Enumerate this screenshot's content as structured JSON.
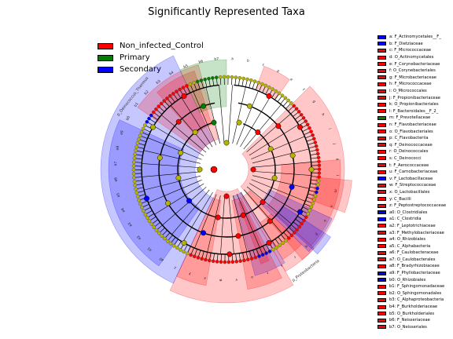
{
  "chart_data": {
    "type": "cladogram",
    "title": "Significantly Represented Taxa",
    "classes": [
      {
        "name": "Non_infected_Control",
        "color": "#ff0000"
      },
      {
        "name": "Primary",
        "color": "#008000"
      },
      {
        "name": "Secondary",
        "color": "#0000ff"
      }
    ],
    "clade_labels": [
      "p_Deinococcus_Thermus",
      "p_Proteobacteria"
    ],
    "taxa": [
      {
        "key": "a",
        "name": "F_Actinomycetales__F_",
        "class": "Secondary"
      },
      {
        "key": "b",
        "name": "F_Dietziaceae",
        "class": "Secondary"
      },
      {
        "key": "c",
        "name": "F_Micrococcaceae",
        "class": "Non_infected_Control"
      },
      {
        "key": "d",
        "name": "O_Actinomycetales",
        "class": "Non_infected_Control"
      },
      {
        "key": "e",
        "name": "F_Corynebacteriaceae",
        "class": "Non_infected_Control"
      },
      {
        "key": "f",
        "name": "O_Corynebacteriales",
        "class": "Non_infected_Control"
      },
      {
        "key": "g",
        "name": "F_Microbacteriaceae",
        "class": "Non_infected_Control"
      },
      {
        "key": "h",
        "name": "F_Micrococcaceae",
        "class": "Non_infected_Control"
      },
      {
        "key": "i",
        "name": "O_Micrococcales",
        "class": "Non_infected_Control"
      },
      {
        "key": "j",
        "name": "F_Propionibacteriaceae",
        "class": "Non_infected_Control"
      },
      {
        "key": "k",
        "name": "O_Propionibacteriales",
        "class": "Non_infected_Control"
      },
      {
        "key": "l",
        "name": "F_Bacteroidales__F_2_",
        "class": "Non_infected_Control"
      },
      {
        "key": "m",
        "name": "F_Prevotellaceae",
        "class": "Primary"
      },
      {
        "key": "n",
        "name": "F_Flavobacteriaceae",
        "class": "Non_infected_Control"
      },
      {
        "key": "o",
        "name": "O_Flavobacteriales",
        "class": "Non_infected_Control"
      },
      {
        "key": "p",
        "name": "C_Flavobacteriia",
        "class": "Non_infected_Control"
      },
      {
        "key": "q",
        "name": "F_Deinococcaceae",
        "class": "Non_infected_Control"
      },
      {
        "key": "r",
        "name": "O_Deinococcales",
        "class": "Non_infected_Control"
      },
      {
        "key": "s",
        "name": "C_Deinococci",
        "class": "Non_infected_Control"
      },
      {
        "key": "t",
        "name": "F_Aerococcaceae",
        "class": "Non_infected_Control"
      },
      {
        "key": "u",
        "name": "F_Carnobacteriaceae",
        "class": "Non_infected_Control"
      },
      {
        "key": "v",
        "name": "F_Lactobacillaceae",
        "class": "Secondary"
      },
      {
        "key": "w",
        "name": "F_Streptococcaceae",
        "class": "Non_infected_Control"
      },
      {
        "key": "x",
        "name": "O_Lactobacillales",
        "class": "Non_infected_Control"
      },
      {
        "key": "y",
        "name": "C_Bacilli",
        "class": "Non_infected_Control"
      },
      {
        "key": "z",
        "name": "F_Peptostreptococcaceae",
        "class": "Non_infected_Control"
      },
      {
        "key": "a0",
        "name": "O_Clostridiales",
        "class": "Secondary"
      },
      {
        "key": "a1",
        "name": "C_Clostridia",
        "class": "Secondary"
      },
      {
        "key": "a2",
        "name": "F_Leptotrichiaceae",
        "class": "Non_infected_Control"
      },
      {
        "key": "a3",
        "name": "F_Methylobacteriaceae",
        "class": "Non_infected_Control"
      },
      {
        "key": "a4",
        "name": "O_Rhizobiales",
        "class": "Non_infected_Control"
      },
      {
        "key": "a5",
        "name": "C_Alphabacteria",
        "class": "Non_infected_Control"
      },
      {
        "key": "a6",
        "name": "F_Caulobacteraceae",
        "class": "Non_infected_Control"
      },
      {
        "key": "a7",
        "name": "O_Caulobacterales",
        "class": "Non_infected_Control"
      },
      {
        "key": "a8",
        "name": "F_Bradyrhizobiaceae",
        "class": "Non_infected_Control"
      },
      {
        "key": "a9",
        "name": "F_Phyllobacteriaceae",
        "class": "Secondary"
      },
      {
        "key": "b0",
        "name": "O_Rhizobiales",
        "class": "Secondary"
      },
      {
        "key": "b1",
        "name": "F_Sphingomonadaceae",
        "class": "Non_infected_Control"
      },
      {
        "key": "b2",
        "name": "O_Sphingomonadales",
        "class": "Non_infected_Control"
      },
      {
        "key": "b3",
        "name": "C_Alphaproteobacteria",
        "class": "Non_infected_Control"
      },
      {
        "key": "b4",
        "name": "F_Burkholderiaceae",
        "class": "Non_infected_Control"
      },
      {
        "key": "b5",
        "name": "O_Burkholderiales",
        "class": "Non_infected_Control"
      },
      {
        "key": "b6",
        "name": "F_Neisseriaceae",
        "class": "Non_infected_Control"
      },
      {
        "key": "b7",
        "name": "O_Neisseriales",
        "class": "Non_infected_Control"
      }
    ]
  }
}
